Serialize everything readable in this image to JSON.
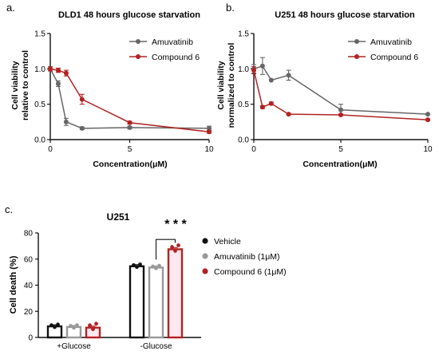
{
  "chart_data": [
    {
      "panel_label": "a.",
      "type": "line",
      "title": "DLD1  48 hours glucose starvation",
      "xlabel": "Concentration(μM)",
      "ylabel": [
        "Cell viability",
        "relative to control"
      ],
      "xlim": [
        0,
        10
      ],
      "ylim": [
        0,
        1.5
      ],
      "xticks": [
        "0",
        "5",
        "10"
      ],
      "yticks": [
        "0.0",
        "0.5",
        "1.0",
        "1.5"
      ],
      "legend_position": "top-right",
      "series": [
        {
          "name": "Amuvatinib",
          "color": "#666666",
          "marker": "circle",
          "x": [
            0,
            0.5,
            1,
            2,
            5,
            10
          ],
          "y": [
            1.0,
            0.79,
            0.25,
            0.16,
            0.17,
            0.16
          ],
          "err": [
            0.03,
            0.04,
            0.05,
            0.02,
            0.02,
            0.03
          ]
        },
        {
          "name": "Compound 6",
          "color": "#b22222",
          "marker": "circle",
          "x": [
            0,
            0.5,
            1,
            2,
            5,
            10
          ],
          "y": [
            1.0,
            0.98,
            0.94,
            0.57,
            0.24,
            0.11
          ],
          "err": [
            0.03,
            0.03,
            0.04,
            0.07,
            0.02,
            0.02
          ]
        }
      ]
    },
    {
      "panel_label": "b.",
      "type": "line",
      "title": "U251  48 hours glucose starvation",
      "xlabel": "Concentration(μM)",
      "ylabel": [
        "Cell viability",
        "normalized to control"
      ],
      "xlim": [
        0,
        10
      ],
      "ylim": [
        0,
        1.5
      ],
      "xticks": [
        "0",
        "5",
        "10"
      ],
      "yticks": [
        "0.0",
        "0.5",
        "1.0",
        "1.5"
      ],
      "legend_position": "top-right",
      "series": [
        {
          "name": "Amuvatinib",
          "color": "#666666",
          "marker": "circle",
          "x": [
            0,
            0.5,
            1,
            2,
            5,
            10
          ],
          "y": [
            1.0,
            1.04,
            0.84,
            0.91,
            0.42,
            0.36
          ],
          "err": [
            0.06,
            0.12,
            0.0,
            0.07,
            0.08,
            0.0
          ]
        },
        {
          "name": "Compound 6",
          "color": "#b22222",
          "marker": "circle",
          "x": [
            0,
            0.5,
            1,
            2,
            5,
            10
          ],
          "y": [
            0.98,
            0.46,
            0.51,
            0.36,
            0.35,
            0.28
          ],
          "err": [
            0.05,
            0.02,
            0.02,
            0.01,
            0.01,
            0.01
          ]
        }
      ]
    },
    {
      "panel_label": "c.",
      "type": "bar",
      "title": "U251",
      "ylabel": "Cell death (%)",
      "ylim": [
        0,
        80
      ],
      "yticks": [
        "0",
        "20",
        "40",
        "60",
        "80"
      ],
      "categories": [
        "+Glucose",
        "-Glucose"
      ],
      "legend_position": "right",
      "significance": "* * *",
      "series": [
        {
          "name": "Vehicle",
          "color": "#111111",
          "values": [
            8.5,
            54.5
          ]
        },
        {
          "name": "Amuvatinib (1μM)",
          "color": "#999999",
          "values": [
            8.0,
            53.5
          ]
        },
        {
          "name": "Compound 6 (1μM)",
          "color": "#b22222",
          "values": [
            7.5,
            67.5
          ]
        }
      ]
    }
  ]
}
